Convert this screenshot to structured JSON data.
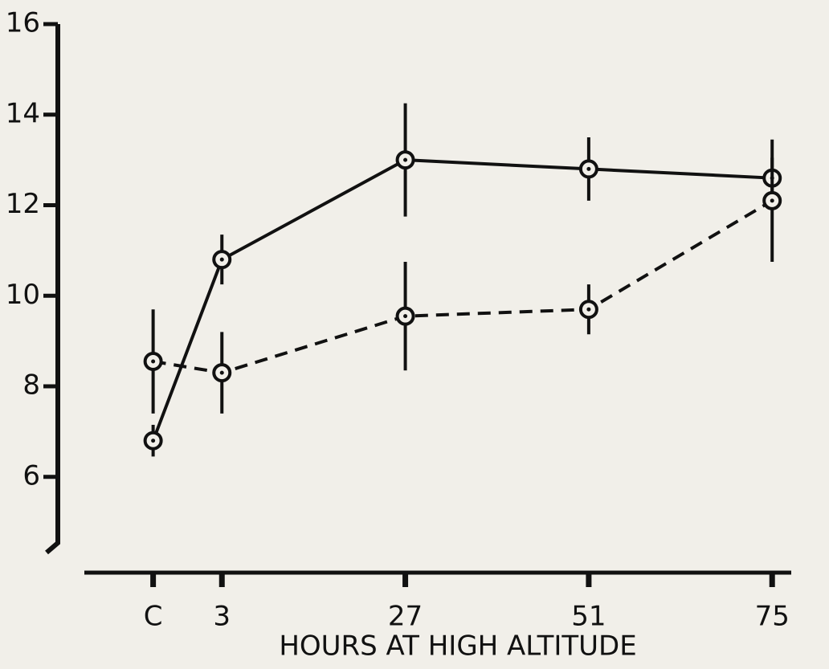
{
  "chart_data": {
    "type": "line",
    "xlabel": "HOURS AT HIGH ALTITUDE",
    "xlim": [
      -15,
      77.5
    ],
    "xticks": [
      {
        "value": -6,
        "label": "C"
      },
      3,
      27,
      51,
      75
    ],
    "ylim": [
      4.4,
      16
    ],
    "yticks": [
      6,
      8,
      10,
      12,
      14,
      16
    ],
    "x": [
      -6,
      3,
      27,
      51,
      75
    ],
    "series": [
      {
        "color": "#111111",
        "line_style": "solid",
        "values": [
          6.8,
          10.8,
          13.0,
          12.8,
          12.6
        ],
        "errors": [
          0.35,
          0.55,
          1.25,
          0.7,
          0.45
        ]
      },
      {
        "color": "#111111",
        "line_style": "dashed",
        "values": [
          8.55,
          8.3,
          9.55,
          9.7,
          12.1
        ],
        "errors": [
          1.15,
          0.9,
          1.2,
          0.55,
          1.35
        ]
      }
    ]
  }
}
